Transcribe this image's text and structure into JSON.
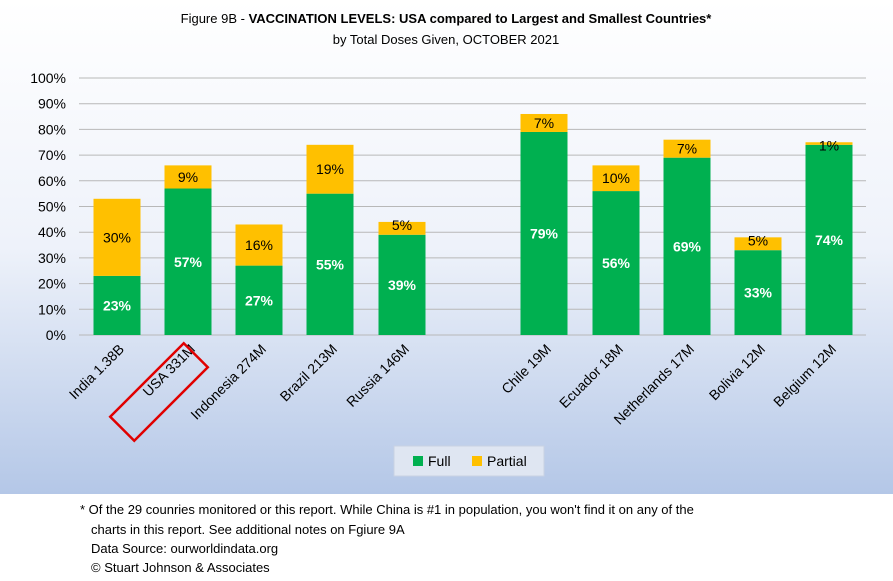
{
  "chart_data": {
    "type": "bar",
    "stacked": true,
    "title_prefix": "Figure 9B - ",
    "title_bold": "VACCINATION LEVELS:  USA compared to Largest and Smallest Countries*",
    "subtitle": "by Total Doses Given, OCTOBER 2021",
    "categories": [
      "India 1.38B",
      "USA 331M",
      "Indonesia 274M",
      "Brazil 213M",
      "Russia 146M",
      "Chile 19M",
      "Ecuador 18M",
      "Netherlands 17M",
      "Bolivia 12M",
      "Belgium 12M"
    ],
    "highlighted_category": "USA 331M",
    "series": [
      {
        "name": "Full",
        "color": "#00b050",
        "values": [
          23,
          57,
          27,
          55,
          39,
          79,
          56,
          69,
          33,
          74
        ],
        "labels": [
          "23%",
          "57%",
          "27%",
          "55%",
          "39%",
          "79%",
          "56%",
          "69%",
          "33%",
          "74%"
        ]
      },
      {
        "name": "Partial",
        "color": "#ffc000",
        "values": [
          30,
          9,
          16,
          19,
          5,
          7,
          10,
          7,
          5,
          1
        ],
        "labels": [
          "30%",
          "9%",
          "16%",
          "19%",
          "5%",
          "7%",
          "10%",
          "7%",
          "5%",
          "1%"
        ]
      }
    ],
    "yticks": [
      "0%",
      "10%",
      "20%",
      "30%",
      "40%",
      "50%",
      "60%",
      "70%",
      "80%",
      "90%",
      "100%"
    ],
    "ylim": [
      0,
      100
    ],
    "grid": true,
    "legend_position": "bottom"
  },
  "footnote": {
    "line1": "* Of the 29 counries monitored or this report. While China is #1 in population, you won't find it on any of the",
    "line2": "charts in this report. See additional notes on Fgiure 9A",
    "line3": "Data Source:  ourworldindata.org",
    "line4": "© Stuart Johnson & Associates"
  }
}
